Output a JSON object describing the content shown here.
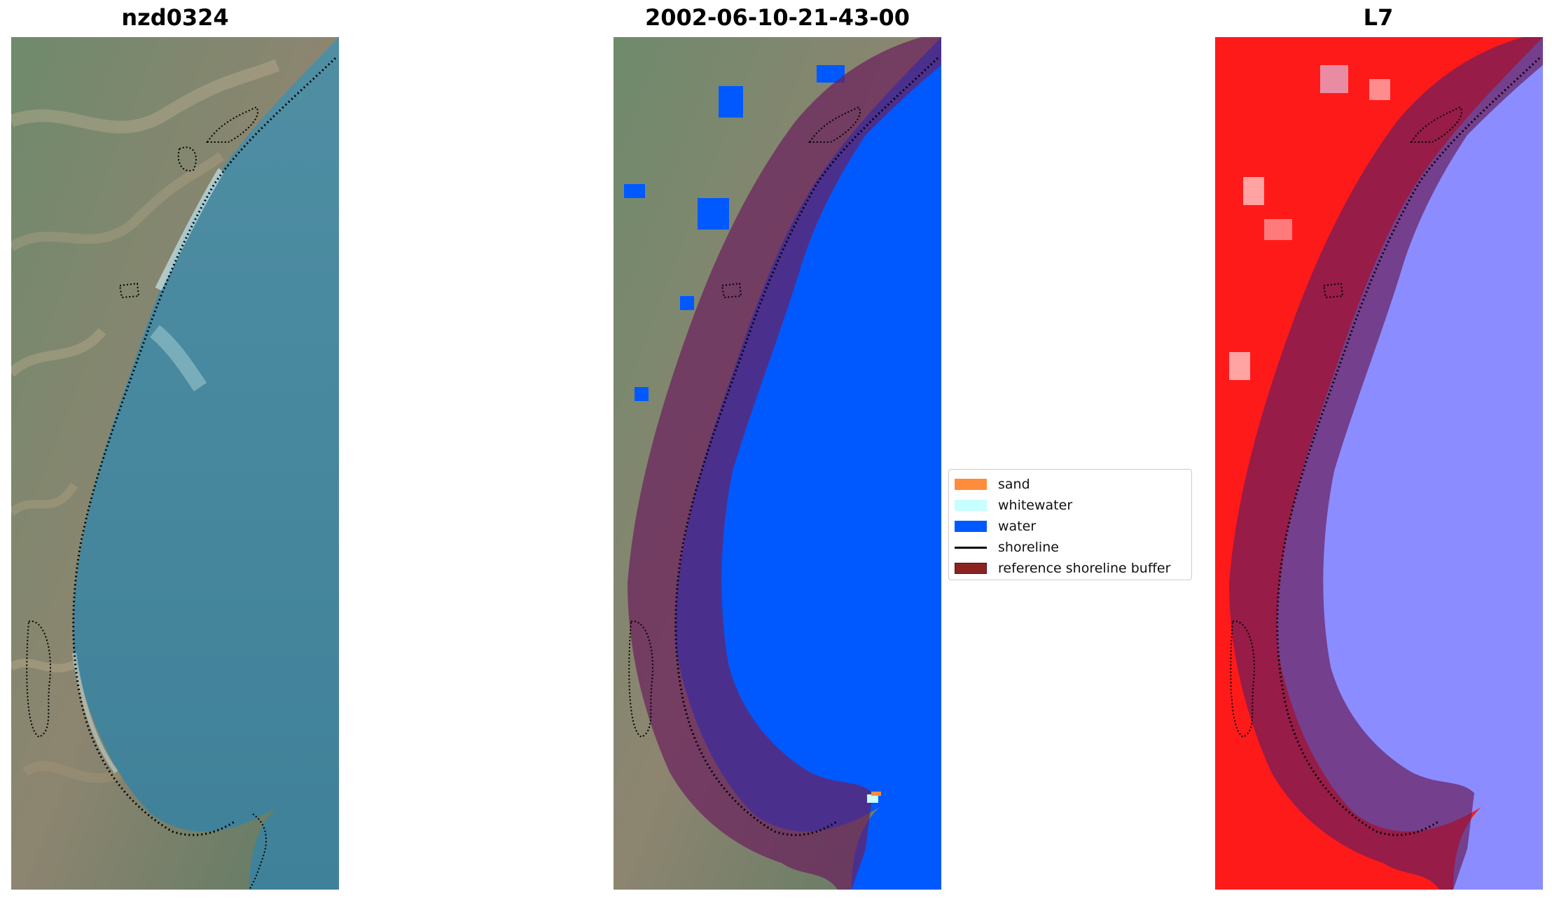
{
  "panels": {
    "left_title": "nzd0324",
    "middle_title": "2002-06-10-21-43-00",
    "right_title": "L7"
  },
  "legend": {
    "items": [
      {
        "label": "sand",
        "color": "#ff8c3a",
        "kind": "patch"
      },
      {
        "label": "whitewater",
        "color": "#c8ffff",
        "kind": "patch"
      },
      {
        "label": "water",
        "color": "#0059ff",
        "kind": "patch"
      },
      {
        "label": "shoreline",
        "color": "#000000",
        "kind": "line"
      },
      {
        "label": "reference shoreline buffer",
        "color": "#8b2323",
        "kind": "patch"
      }
    ]
  },
  "colors": {
    "land_green": "#5f7a62",
    "sea_blue": "#4c8aa0",
    "water_class": "#0059ff",
    "buffer": "#6b1e5c",
    "index_red": "#ff1a1a",
    "index_blue": "#8a8cff"
  }
}
